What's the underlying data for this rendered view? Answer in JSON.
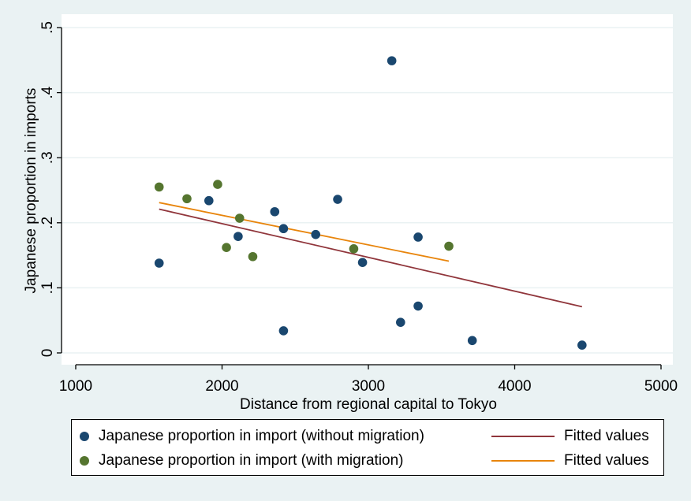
{
  "chart_data": {
    "type": "scatter",
    "xlabel": "Distance from regional capital to Tokyo",
    "ylabel": "Japanese proportion in imports",
    "xlim": [
      1000,
      5000
    ],
    "ylim": [
      0,
      0.5
    ],
    "x_ticks": [
      1000,
      2000,
      3000,
      4000,
      5000
    ],
    "x_tick_labels": [
      "1000",
      "2000",
      "3000",
      "4000",
      "5000"
    ],
    "y_ticks": [
      0,
      0.1,
      0.2,
      0.3,
      0.4,
      0.5
    ],
    "y_tick_labels": [
      "0",
      ".1",
      ".2",
      ".3",
      ".4",
      ".5"
    ],
    "grid": "horizontal",
    "legend_position": "bottom",
    "series": [
      {
        "name": "Japanese proportion in import (without migration)",
        "kind": "scatter",
        "color": "#1a476f",
        "points": [
          [
            1570,
            0.138
          ],
          [
            1910,
            0.234
          ],
          [
            2110,
            0.179
          ],
          [
            2360,
            0.217
          ],
          [
            2420,
            0.191
          ],
          [
            2420,
            0.034
          ],
          [
            2640,
            0.182
          ],
          [
            2790,
            0.236
          ],
          [
            2960,
            0.139
          ],
          [
            3160,
            0.449
          ],
          [
            3220,
            0.047
          ],
          [
            3340,
            0.178
          ],
          [
            3340,
            0.072
          ],
          [
            3710,
            0.019
          ],
          [
            4460,
            0.012
          ]
        ]
      },
      {
        "name": "Japanese proportion in import (with migration)",
        "kind": "scatter",
        "color": "#55752f",
        "points": [
          [
            1570,
            0.255
          ],
          [
            1760,
            0.237
          ],
          [
            1970,
            0.259
          ],
          [
            2030,
            0.162
          ],
          [
            2120,
            0.207
          ],
          [
            2210,
            0.148
          ],
          [
            2900,
            0.16
          ],
          [
            3550,
            0.164
          ]
        ]
      },
      {
        "name": "Fitted values",
        "kind": "line",
        "color": "#90353b",
        "points": [
          [
            1570,
            0.221
          ],
          [
            4460,
            0.071
          ]
        ]
      },
      {
        "name": "Fitted values",
        "kind": "line",
        "color": "#e8850c",
        "points": [
          [
            1570,
            0.231
          ],
          [
            3550,
            0.141
          ]
        ]
      }
    ]
  },
  "legend": {
    "items": [
      {
        "label": "Japanese proportion in import (without migration)",
        "color": "#1a476f"
      },
      {
        "label": "Japanese proportion in import (with migration)",
        "color": "#55752f"
      },
      {
        "label": "Fitted values",
        "color": "#90353b"
      },
      {
        "label": "Fitted values",
        "color": "#e8850c"
      }
    ]
  },
  "colors": {
    "page_background": "#eaf2f3",
    "plot_background": "#ffffff",
    "grid": "#eaf2f3"
  }
}
